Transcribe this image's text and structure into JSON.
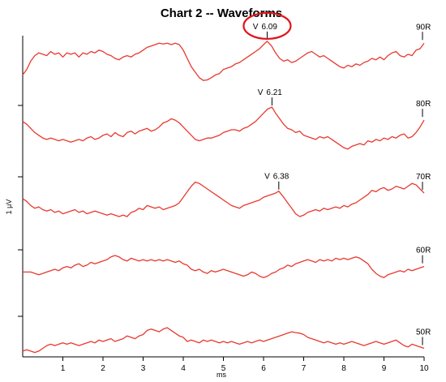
{
  "chart_data": {
    "type": "line",
    "title": "Chart 2 -- Waveforms",
    "xlabel": "ms",
    "ylabel": "1 μV",
    "xlim": [
      0,
      10
    ],
    "x_ticks": [
      "1",
      "2",
      "3",
      "4",
      "5",
      "6",
      "7",
      "8",
      "9",
      "10"
    ],
    "grid": false,
    "legend": "none",
    "line_color": "#e8392f",
    "highlight_color": "#e0141c",
    "series": [
      {
        "name": "90R",
        "peak": {
          "label": "V",
          "latency": "6.09",
          "x": 6.09,
          "highlighted": true
        },
        "x": [
          0,
          0.1,
          0.2,
          0.3,
          0.4,
          0.5,
          0.6,
          0.7,
          0.8,
          0.9,
          1,
          1.1,
          1.2,
          1.3,
          1.4,
          1.5,
          1.6,
          1.7,
          1.8,
          1.9,
          2,
          2.1,
          2.2,
          2.3,
          2.4,
          2.5,
          2.6,
          2.7,
          2.8,
          2.9,
          3,
          3.1,
          3.2,
          3.3,
          3.4,
          3.5,
          3.6,
          3.7,
          3.8,
          3.9,
          4,
          4.1,
          4.2,
          4.3,
          4.4,
          4.5,
          4.6,
          4.7,
          4.8,
          4.9,
          5,
          5.1,
          5.2,
          5.3,
          5.4,
          5.5,
          5.6,
          5.7,
          5.8,
          5.9,
          6,
          6.09,
          6.2,
          6.3,
          6.4,
          6.5,
          6.6,
          6.7,
          6.8,
          6.9,
          7,
          7.1,
          7.2,
          7.3,
          7.4,
          7.5,
          7.6,
          7.7,
          7.8,
          7.9,
          8,
          8.1,
          8.2,
          8.3,
          8.4,
          8.5,
          8.6,
          8.7,
          8.8,
          8.9,
          9,
          9.1,
          9.2,
          9.3,
          9.4,
          9.5,
          9.6,
          9.7,
          9.8,
          9.9,
          10
        ],
        "y": [
          -0.6,
          -0.4,
          -0.1,
          0.1,
          0.2,
          0.15,
          0.1,
          0.25,
          0.15,
          0.2,
          0.05,
          0.2,
          0.15,
          0.2,
          0.05,
          0.2,
          0.15,
          0.25,
          0.2,
          0.3,
          0.25,
          0.15,
          0.1,
          0.0,
          -0.05,
          0.05,
          0.1,
          0.05,
          0.15,
          0.2,
          0.3,
          0.4,
          0.45,
          0.5,
          0.55,
          0.52,
          0.55,
          0.5,
          0.55,
          0.5,
          0.3,
          0.0,
          -0.3,
          -0.5,
          -0.7,
          -0.8,
          -0.78,
          -0.7,
          -0.6,
          -0.55,
          -0.4,
          -0.35,
          -0.3,
          -0.2,
          -0.15,
          -0.05,
          0.05,
          0.15,
          0.25,
          0.35,
          0.5,
          0.62,
          0.45,
          0.2,
          0.0,
          -0.1,
          -0.05,
          -0.15,
          -0.1,
          0.0,
          0.1,
          0.2,
          0.25,
          0.15,
          0.05,
          0.1,
          0.0,
          -0.1,
          -0.2,
          -0.3,
          -0.35,
          -0.25,
          -0.3,
          -0.2,
          -0.25,
          -0.15,
          -0.1,
          0.0,
          -0.05,
          0.05,
          -0.05,
          0.1,
          0.2,
          0.25,
          0.1,
          0.05,
          0.15,
          0.1,
          0.3,
          0.35,
          0.55
        ]
      },
      {
        "name": "80R",
        "peak": {
          "label": "V",
          "latency": "6.21",
          "x": 6.21,
          "highlighted": false
        },
        "x": [
          0,
          0.1,
          0.2,
          0.3,
          0.4,
          0.5,
          0.6,
          0.7,
          0.8,
          0.9,
          1,
          1.1,
          1.2,
          1.3,
          1.4,
          1.5,
          1.6,
          1.7,
          1.8,
          1.9,
          2,
          2.1,
          2.2,
          2.3,
          2.4,
          2.5,
          2.6,
          2.7,
          2.8,
          2.9,
          3,
          3.1,
          3.2,
          3.3,
          3.4,
          3.5,
          3.6,
          3.7,
          3.8,
          3.9,
          4,
          4.1,
          4.2,
          4.3,
          4.4,
          4.5,
          4.6,
          4.7,
          4.8,
          4.9,
          5,
          5.1,
          5.2,
          5.3,
          5.4,
          5.5,
          5.6,
          5.7,
          5.8,
          5.9,
          6,
          6.1,
          6.21,
          6.3,
          6.4,
          6.5,
          6.6,
          6.7,
          6.8,
          6.9,
          7,
          7.1,
          7.2,
          7.3,
          7.4,
          7.5,
          7.6,
          7.7,
          7.8,
          7.9,
          8,
          8.1,
          8.2,
          8.3,
          8.4,
          8.5,
          8.6,
          8.7,
          8.8,
          8.9,
          9,
          9.1,
          9.2,
          9.3,
          9.4,
          9.5,
          9.6,
          9.7,
          9.8,
          9.9,
          10
        ],
        "y": [
          0.3,
          0.2,
          0.05,
          -0.1,
          -0.2,
          -0.3,
          -0.35,
          -0.3,
          -0.35,
          -0.4,
          -0.35,
          -0.4,
          -0.45,
          -0.4,
          -0.35,
          -0.4,
          -0.3,
          -0.25,
          -0.35,
          -0.3,
          -0.2,
          -0.15,
          -0.25,
          -0.1,
          -0.2,
          -0.25,
          -0.1,
          -0.05,
          -0.15,
          -0.05,
          0.0,
          0.05,
          -0.05,
          0.0,
          0.1,
          0.25,
          0.3,
          0.4,
          0.35,
          0.25,
          0.1,
          -0.05,
          -0.2,
          -0.35,
          -0.4,
          -0.35,
          -0.3,
          -0.3,
          -0.25,
          -0.2,
          -0.1,
          -0.05,
          0.0,
          0.0,
          -0.05,
          0.05,
          0.1,
          0.2,
          0.3,
          0.45,
          0.6,
          0.75,
          0.82,
          0.6,
          0.4,
          0.2,
          0.05,
          0.0,
          -0.1,
          -0.05,
          -0.2,
          -0.25,
          -0.3,
          -0.35,
          -0.25,
          -0.3,
          -0.25,
          -0.35,
          -0.45,
          -0.55,
          -0.65,
          -0.7,
          -0.6,
          -0.55,
          -0.5,
          -0.55,
          -0.4,
          -0.45,
          -0.35,
          -0.4,
          -0.3,
          -0.35,
          -0.25,
          -0.3,
          -0.2,
          -0.15,
          -0.3,
          -0.25,
          -0.1,
          0.1,
          0.35
        ]
      },
      {
        "name": "70R",
        "peak": {
          "label": "V",
          "latency": "6.38",
          "x": 6.38,
          "highlighted": false
        },
        "x": [
          0,
          0.1,
          0.2,
          0.3,
          0.4,
          0.5,
          0.6,
          0.7,
          0.8,
          0.9,
          1,
          1.1,
          1.2,
          1.3,
          1.4,
          1.5,
          1.6,
          1.7,
          1.8,
          1.9,
          2,
          2.1,
          2.2,
          2.3,
          2.4,
          2.5,
          2.6,
          2.7,
          2.8,
          2.9,
          3,
          3.1,
          3.2,
          3.3,
          3.4,
          3.5,
          3.6,
          3.7,
          3.8,
          3.9,
          4,
          4.1,
          4.2,
          4.3,
          4.4,
          4.5,
          4.6,
          4.7,
          4.8,
          4.9,
          5,
          5.1,
          5.2,
          5.3,
          5.4,
          5.5,
          5.6,
          5.7,
          5.8,
          5.9,
          6,
          6.1,
          6.2,
          6.3,
          6.38,
          6.5,
          6.6,
          6.7,
          6.8,
          6.9,
          7,
          7.1,
          7.2,
          7.3,
          7.4,
          7.5,
          7.6,
          7.7,
          7.8,
          7.9,
          8,
          8.1,
          8.2,
          8.3,
          8.4,
          8.5,
          8.6,
          8.7,
          8.8,
          8.9,
          9,
          9.1,
          9.2,
          9.3,
          9.4,
          9.5,
          9.6,
          9.7,
          9.8,
          9.9,
          10
        ],
        "y": [
          0.15,
          0.05,
          -0.1,
          -0.2,
          -0.15,
          -0.25,
          -0.3,
          -0.25,
          -0.35,
          -0.3,
          -0.4,
          -0.35,
          -0.3,
          -0.25,
          -0.35,
          -0.3,
          -0.4,
          -0.35,
          -0.3,
          -0.35,
          -0.4,
          -0.45,
          -0.4,
          -0.45,
          -0.5,
          -0.45,
          -0.5,
          -0.35,
          -0.3,
          -0.2,
          -0.25,
          -0.1,
          -0.15,
          -0.2,
          -0.15,
          -0.25,
          -0.2,
          -0.15,
          -0.1,
          0.0,
          0.2,
          0.4,
          0.6,
          0.75,
          0.7,
          0.6,
          0.5,
          0.4,
          0.3,
          0.2,
          0.1,
          0.0,
          -0.1,
          -0.15,
          -0.2,
          -0.1,
          -0.05,
          0.0,
          0.05,
          0.1,
          0.2,
          0.25,
          0.3,
          0.35,
          0.42,
          0.2,
          0.0,
          -0.2,
          -0.4,
          -0.5,
          -0.45,
          -0.35,
          -0.3,
          -0.25,
          -0.3,
          -0.2,
          -0.25,
          -0.2,
          -0.15,
          -0.2,
          -0.1,
          -0.15,
          -0.05,
          0.0,
          0.1,
          0.2,
          0.3,
          0.45,
          0.4,
          0.5,
          0.55,
          0.45,
          0.5,
          0.6,
          0.55,
          0.5,
          0.6,
          0.7,
          0.65,
          0.5,
          0.35
        ]
      },
      {
        "name": "60R",
        "peak": null,
        "x": [
          0,
          0.1,
          0.2,
          0.3,
          0.4,
          0.5,
          0.6,
          0.7,
          0.8,
          0.9,
          1,
          1.1,
          1.2,
          1.3,
          1.4,
          1.5,
          1.6,
          1.7,
          1.8,
          1.9,
          2,
          2.1,
          2.2,
          2.3,
          2.4,
          2.5,
          2.6,
          2.7,
          2.8,
          2.9,
          3,
          3.1,
          3.2,
          3.3,
          3.4,
          3.5,
          3.6,
          3.7,
          3.8,
          3.9,
          4,
          4.1,
          4.2,
          4.3,
          4.4,
          4.5,
          4.6,
          4.7,
          4.8,
          4.9,
          5,
          5.1,
          5.2,
          5.3,
          5.4,
          5.5,
          5.6,
          5.7,
          5.8,
          5.9,
          6,
          6.1,
          6.2,
          6.3,
          6.4,
          6.5,
          6.6,
          6.7,
          6.8,
          6.9,
          7,
          7.1,
          7.2,
          7.3,
          7.4,
          7.5,
          7.6,
          7.7,
          7.8,
          7.9,
          8,
          8.1,
          8.2,
          8.3,
          8.4,
          8.5,
          8.6,
          8.7,
          8.8,
          8.9,
          9,
          9.1,
          9.2,
          9.3,
          9.4,
          9.5,
          9.6,
          9.7,
          9.8,
          9.9,
          10
        ],
        "y": [
          -0.1,
          -0.1,
          -0.1,
          -0.15,
          -0.2,
          -0.15,
          -0.1,
          -0.05,
          0.0,
          -0.05,
          0.05,
          0.1,
          0.05,
          0.15,
          0.2,
          0.1,
          0.15,
          0.25,
          0.2,
          0.25,
          0.3,
          0.35,
          0.45,
          0.5,
          0.45,
          0.35,
          0.3,
          0.4,
          0.35,
          0.3,
          0.35,
          0.3,
          0.35,
          0.3,
          0.35,
          0.3,
          0.35,
          0.3,
          0.25,
          0.3,
          0.2,
          0.15,
          0.0,
          -0.05,
          0.0,
          -0.1,
          -0.15,
          -0.05,
          -0.1,
          -0.05,
          0.0,
          -0.05,
          -0.1,
          -0.15,
          -0.2,
          -0.25,
          -0.2,
          -0.1,
          -0.15,
          -0.25,
          -0.3,
          -0.25,
          -0.15,
          -0.1,
          0.0,
          0.05,
          0.15,
          0.1,
          0.2,
          0.25,
          0.3,
          0.35,
          0.3,
          0.25,
          0.35,
          0.3,
          0.35,
          0.3,
          0.4,
          0.35,
          0.4,
          0.35,
          0.4,
          0.45,
          0.4,
          0.3,
          0.2,
          0.0,
          -0.15,
          -0.25,
          -0.3,
          -0.2,
          -0.15,
          -0.1,
          -0.05,
          -0.1,
          0.0,
          -0.05,
          0.0,
          0.05,
          0.1
        ]
      },
      {
        "name": "50R",
        "peak": null,
        "x": [
          0,
          0.1,
          0.2,
          0.3,
          0.4,
          0.5,
          0.6,
          0.7,
          0.8,
          0.9,
          1,
          1.1,
          1.2,
          1.3,
          1.4,
          1.5,
          1.6,
          1.7,
          1.8,
          1.9,
          2,
          2.1,
          2.2,
          2.3,
          2.4,
          2.5,
          2.6,
          2.7,
          2.8,
          2.9,
          3,
          3.1,
          3.2,
          3.3,
          3.4,
          3.5,
          3.6,
          3.7,
          3.8,
          3.9,
          4,
          4.1,
          4.2,
          4.3,
          4.4,
          4.5,
          4.6,
          4.7,
          4.8,
          4.9,
          5,
          5.1,
          5.2,
          5.3,
          5.4,
          5.5,
          5.6,
          5.7,
          5.8,
          5.9,
          6,
          6.1,
          6.2,
          6.3,
          6.4,
          6.5,
          6.6,
          6.7,
          6.8,
          6.9,
          7,
          7.1,
          7.2,
          7.3,
          7.4,
          7.5,
          7.6,
          7.7,
          7.8,
          7.9,
          8,
          8.1,
          8.2,
          8.3,
          8.4,
          8.5,
          8.6,
          8.7,
          8.8,
          8.9,
          9,
          9.1,
          9.2,
          9.3,
          9.4,
          9.5,
          9.6,
          9.7,
          9.8,
          9.9,
          10
        ],
        "y": [
          -0.35,
          -0.3,
          -0.35,
          -0.4,
          -0.35,
          -0.25,
          -0.15,
          -0.1,
          -0.15,
          -0.1,
          -0.05,
          -0.1,
          -0.05,
          -0.1,
          -0.15,
          -0.1,
          -0.05,
          0.0,
          -0.05,
          0.05,
          0.0,
          0.05,
          0.1,
          0.0,
          0.05,
          0.1,
          0.2,
          0.15,
          0.1,
          0.2,
          0.25,
          0.4,
          0.45,
          0.4,
          0.35,
          0.45,
          0.5,
          0.4,
          0.3,
          0.2,
          0.15,
          0.0,
          0.05,
          0.0,
          -0.05,
          0.05,
          0.0,
          0.05,
          0.0,
          -0.05,
          0.0,
          -0.05,
          0.0,
          -0.05,
          -0.1,
          -0.05,
          0.0,
          -0.05,
          0.0,
          0.05,
          0.0,
          0.05,
          0.1,
          0.15,
          0.2,
          0.25,
          0.3,
          0.35,
          0.32,
          0.3,
          0.25,
          0.15,
          0.1,
          0.05,
          0.0,
          -0.05,
          0.0,
          -0.05,
          -0.1,
          -0.05,
          -0.1,
          -0.05,
          0.0,
          -0.05,
          -0.1,
          -0.15,
          -0.1,
          -0.05,
          0.0,
          -0.05,
          -0.1,
          -0.05,
          0.0,
          0.05,
          -0.05,
          -0.15,
          -0.2,
          -0.1,
          -0.15,
          -0.2,
          -0.25
        ]
      }
    ]
  }
}
